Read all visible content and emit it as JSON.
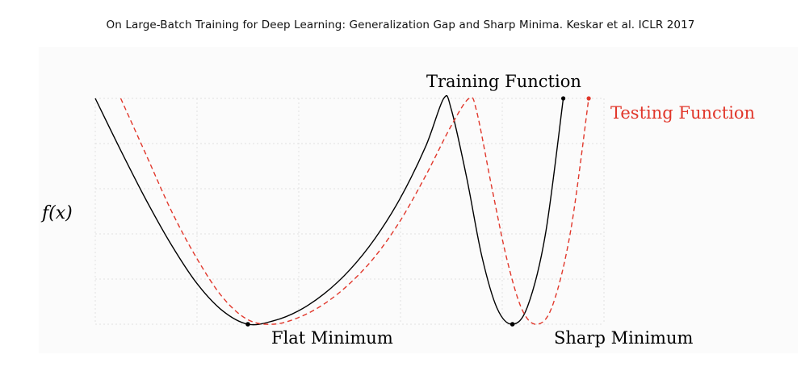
{
  "source_title": "On Large-Batch Training for Deep Learning: Generalization Gap and Sharp Minima. Keskar et al. ICLR 2017",
  "chart_data": {
    "type": "line",
    "title": "",
    "xlabel": "",
    "ylabel": "f(x)",
    "grid": true,
    "xlim": [
      0,
      10
    ],
    "ylim": [
      0,
      10
    ],
    "series": [
      {
        "name": "Training Function",
        "color": "#000000",
        "line_style": "solid",
        "x": [
          0,
          0.5,
          1,
          1.5,
          2,
          2.5,
          3,
          3.5,
          4,
          4.5,
          5,
          5.5,
          6,
          6.5,
          6.85,
          7.0,
          7.3,
          7.6,
          7.9,
          8.2,
          8.5,
          8.85,
          9.2
        ],
        "y": [
          10,
          7.7,
          5.5,
          3.5,
          1.8,
          0.6,
          0.0,
          0.15,
          0.6,
          1.35,
          2.4,
          3.8,
          5.6,
          7.9,
          10,
          9.5,
          6.5,
          3.0,
          0.7,
          0.0,
          0.8,
          4.0,
          10
        ]
      },
      {
        "name": "Testing Function",
        "color": "#e1372b",
        "line_style": "dashed",
        "x": [
          0.5,
          1,
          1.5,
          2,
          2.5,
          3,
          3.5,
          4,
          4.5,
          5,
          5.5,
          6,
          6.5,
          7,
          7.35,
          7.5,
          7.8,
          8.1,
          8.4,
          8.7,
          9.0,
          9.35,
          9.7
        ],
        "y": [
          10,
          7.5,
          5.0,
          2.9,
          1.2,
          0.2,
          0.0,
          0.3,
          0.9,
          1.8,
          3.0,
          4.6,
          6.6,
          8.8,
          10,
          9.4,
          6.0,
          2.8,
          0.6,
          0.0,
          0.9,
          4.2,
          10
        ]
      }
    ],
    "annotations": [
      {
        "text": "Flat Minimum",
        "x": 3.0,
        "y": 0.0
      },
      {
        "text": "Sharp Minimum",
        "x": 8.2,
        "y": 0.0
      },
      {
        "text": "Training Function",
        "x": 7.2,
        "y": 10
      },
      {
        "text": "Testing Function",
        "x": 9.7,
        "y": 10
      }
    ]
  }
}
